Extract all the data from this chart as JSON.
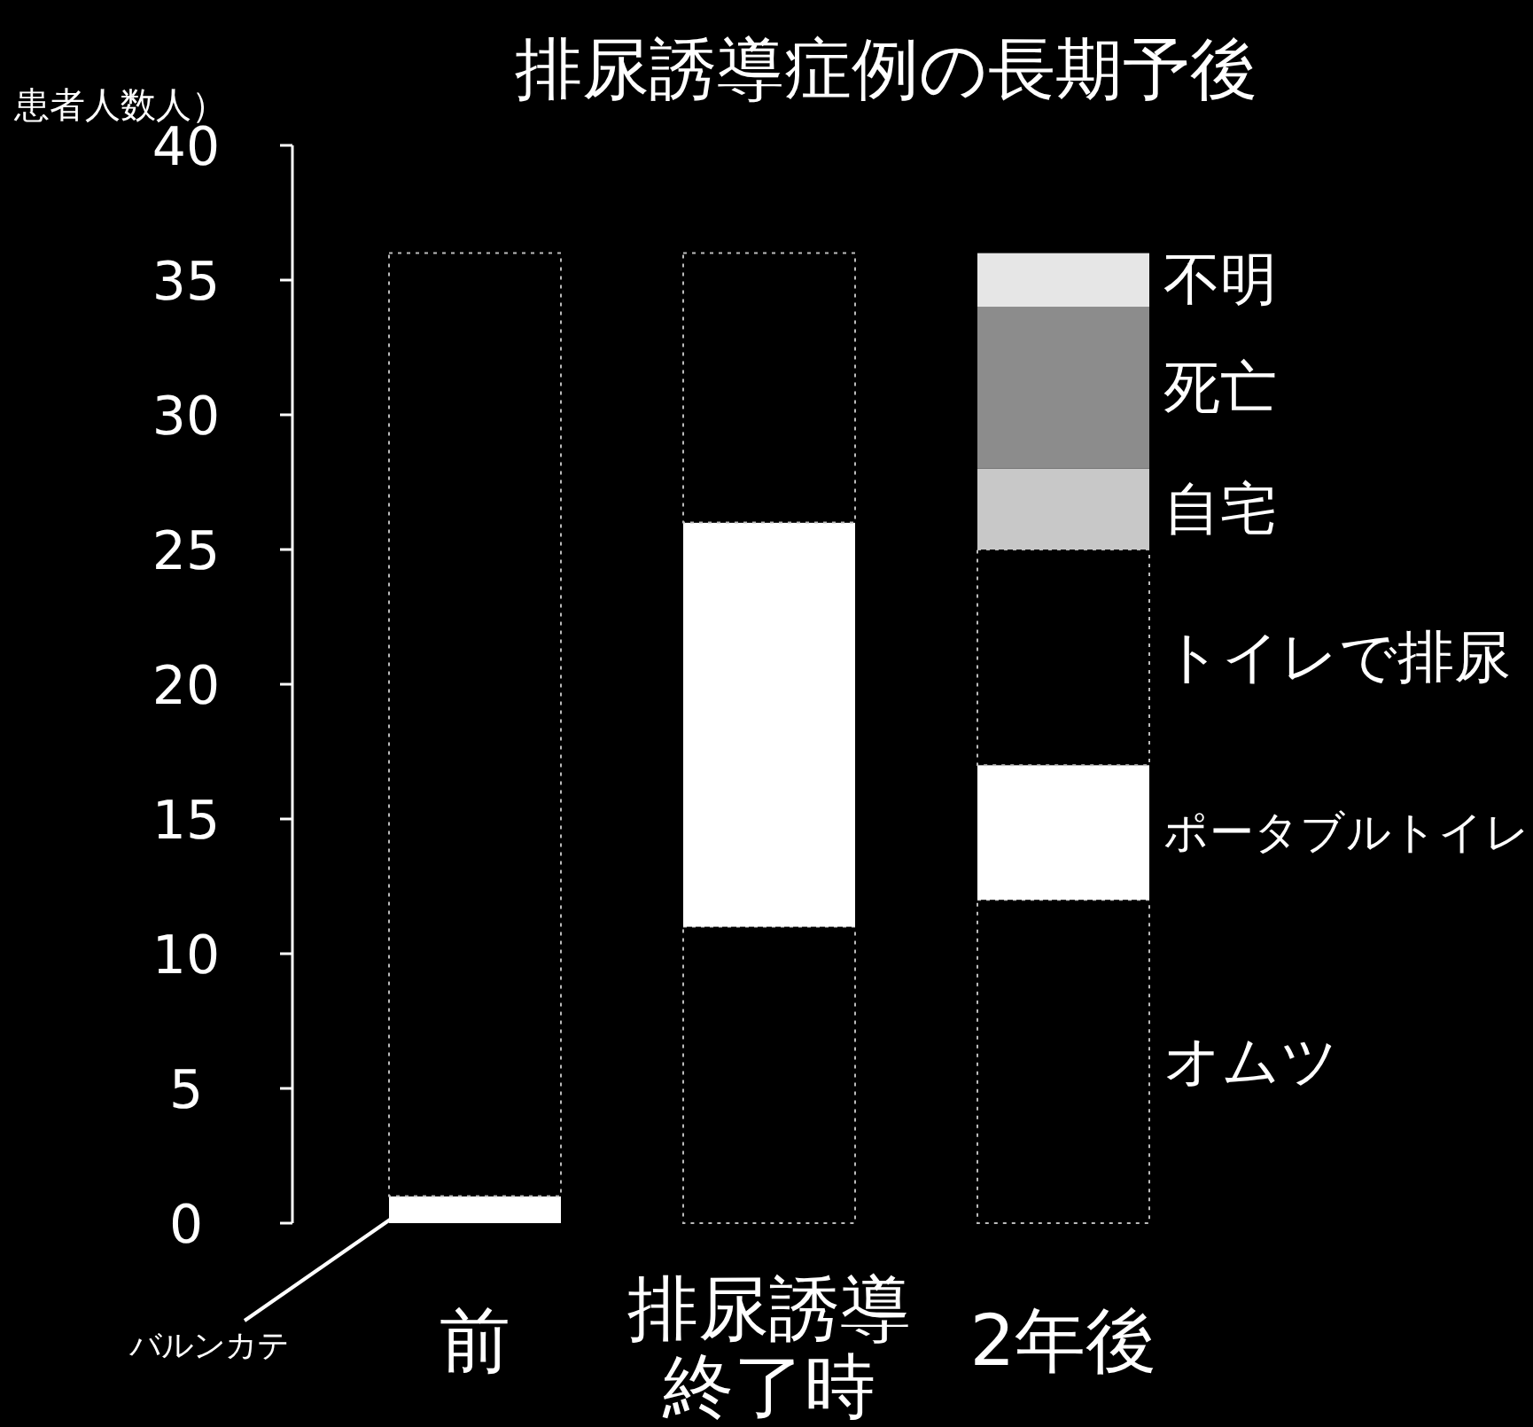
{
  "chart_data": {
    "type": "bar",
    "stacked": true,
    "title": "排尿誘導症例の長期予後",
    "ylabel": "患者人数人）",
    "categories": [
      "前",
      "排尿誘導終了時",
      "2年後"
    ],
    "ylim": [
      0,
      40
    ],
    "yticks": [
      0,
      5,
      10,
      15,
      20,
      25,
      30,
      35,
      40
    ],
    "grid": false,
    "legend": false,
    "series": [
      {
        "name": "バルンカテ",
        "color": "#ffffff",
        "values": [
          1,
          0,
          0
        ]
      },
      {
        "name": "オムツ",
        "color": "#000000",
        "values": [
          35,
          11,
          12
        ]
      },
      {
        "name": "ポータブルトイレ",
        "color": "#ffffff",
        "values": [
          0,
          15,
          5
        ]
      },
      {
        "name": "トイレで排尿",
        "color": "#000000",
        "values": [
          0,
          10,
          8
        ]
      },
      {
        "name": "自宅",
        "color": "#c8c8c8",
        "values": [
          0,
          0,
          3
        ]
      },
      {
        "name": "死亡",
        "color": "#8c8c8c",
        "values": [
          0,
          0,
          6
        ]
      },
      {
        "name": "不明",
        "color": "#e6e6e6",
        "values": [
          0,
          0,
          2
        ]
      }
    ]
  }
}
